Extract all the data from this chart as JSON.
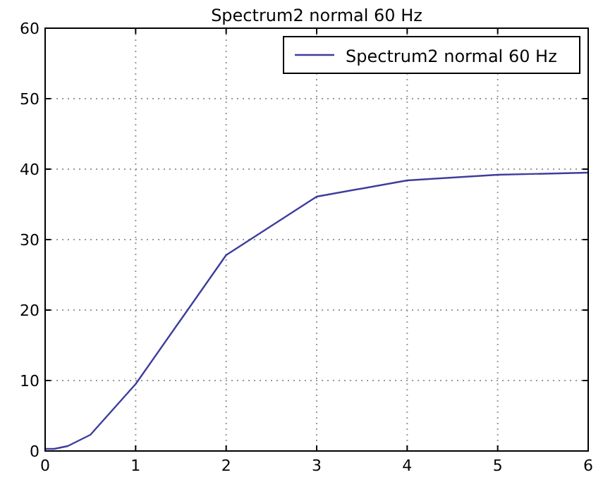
{
  "chart_data": {
    "type": "line",
    "title": "Spectrum2 normal 60 Hz",
    "x": [
      0,
      0.1,
      0.25,
      0.5,
      1,
      2,
      3,
      4,
      5,
      6
    ],
    "series": [
      {
        "name": "Spectrum2 normal 60 Hz",
        "color": "#3d3d9e",
        "values": [
          0.3,
          0.3,
          0.7,
          2.3,
          9.5,
          27.8,
          36.1,
          38.4,
          39.2,
          39.5
        ]
      }
    ],
    "xlim": [
      0,
      6
    ],
    "xticks": [
      0,
      1,
      2,
      3,
      4,
      5,
      6
    ],
    "ylim": [
      0,
      60
    ],
    "yticks": [
      0,
      10,
      20,
      30,
      40,
      50,
      60
    ],
    "grid": true,
    "legend": "top right",
    "marker": "none",
    "line_style": "solid"
  }
}
